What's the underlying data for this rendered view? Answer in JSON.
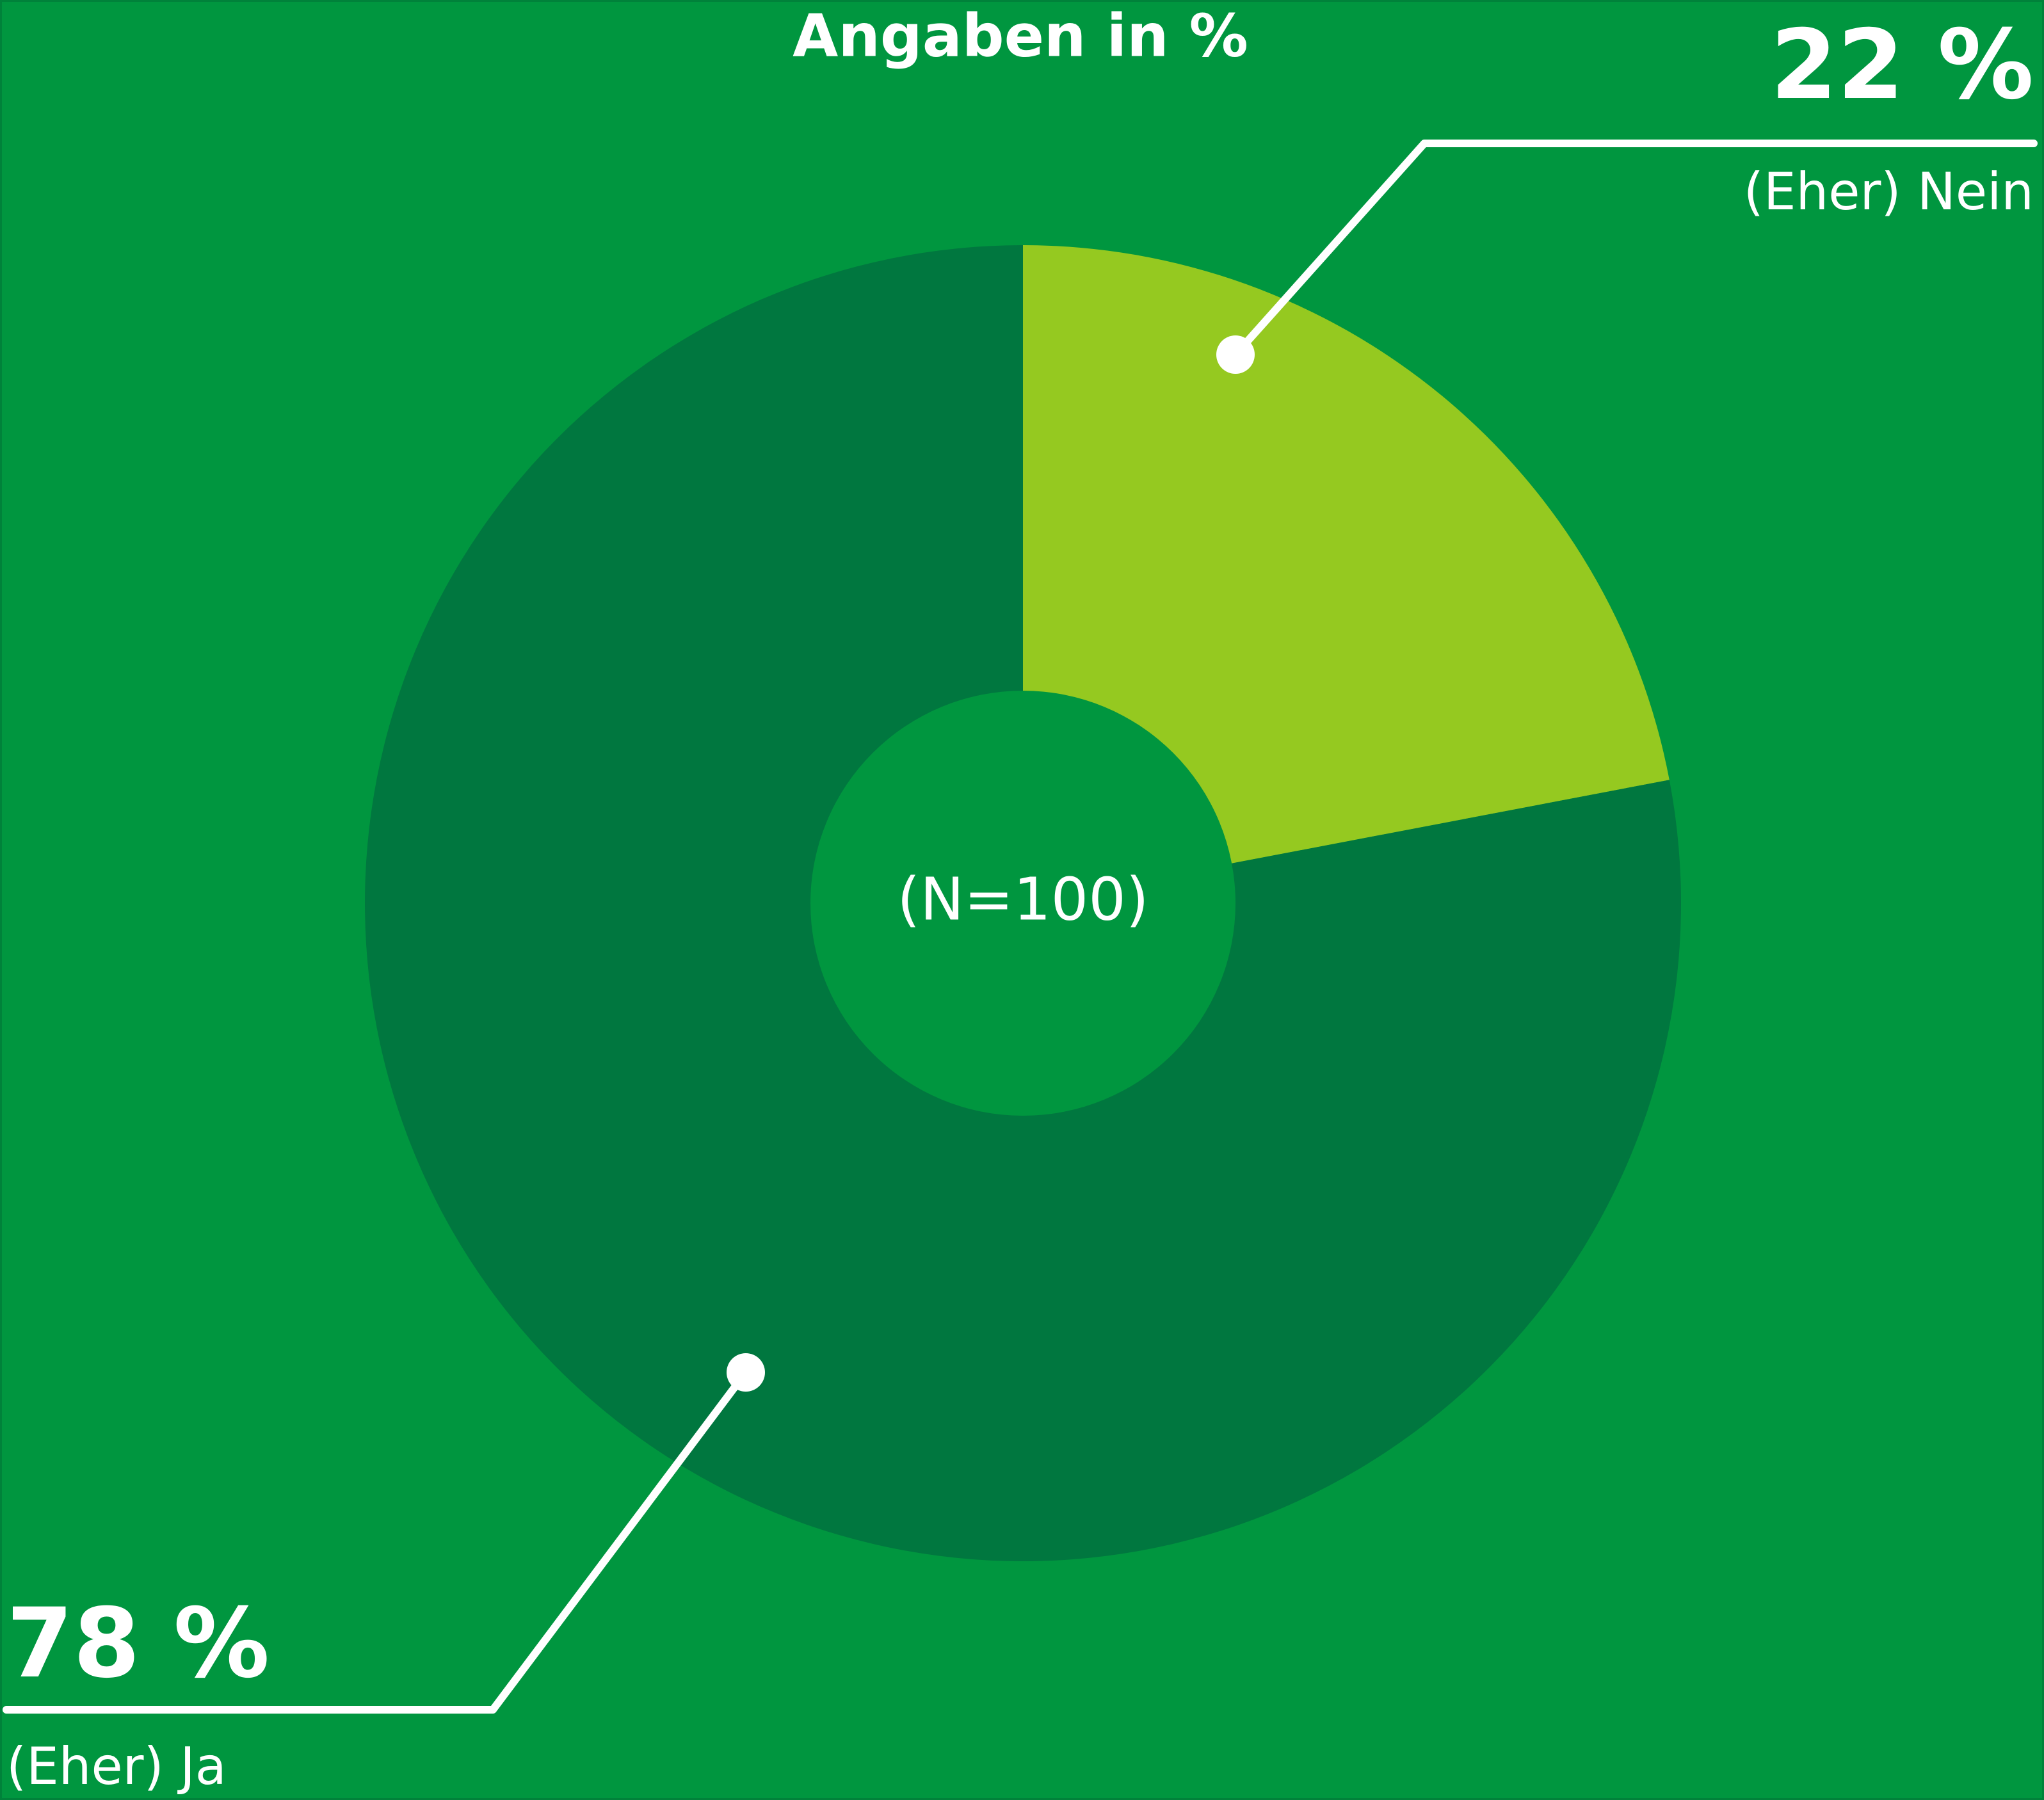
{
  "chart_data": {
    "type": "donut",
    "title": "Angaben in %",
    "center_label": "(N=100)",
    "categories": [
      "(Eher) Nein",
      "(Eher) Ja"
    ],
    "values": [
      22,
      78
    ],
    "value_labels": [
      "22 %",
      "78 %"
    ],
    "colors": [
      "#95c920",
      "#00773f"
    ]
  }
}
